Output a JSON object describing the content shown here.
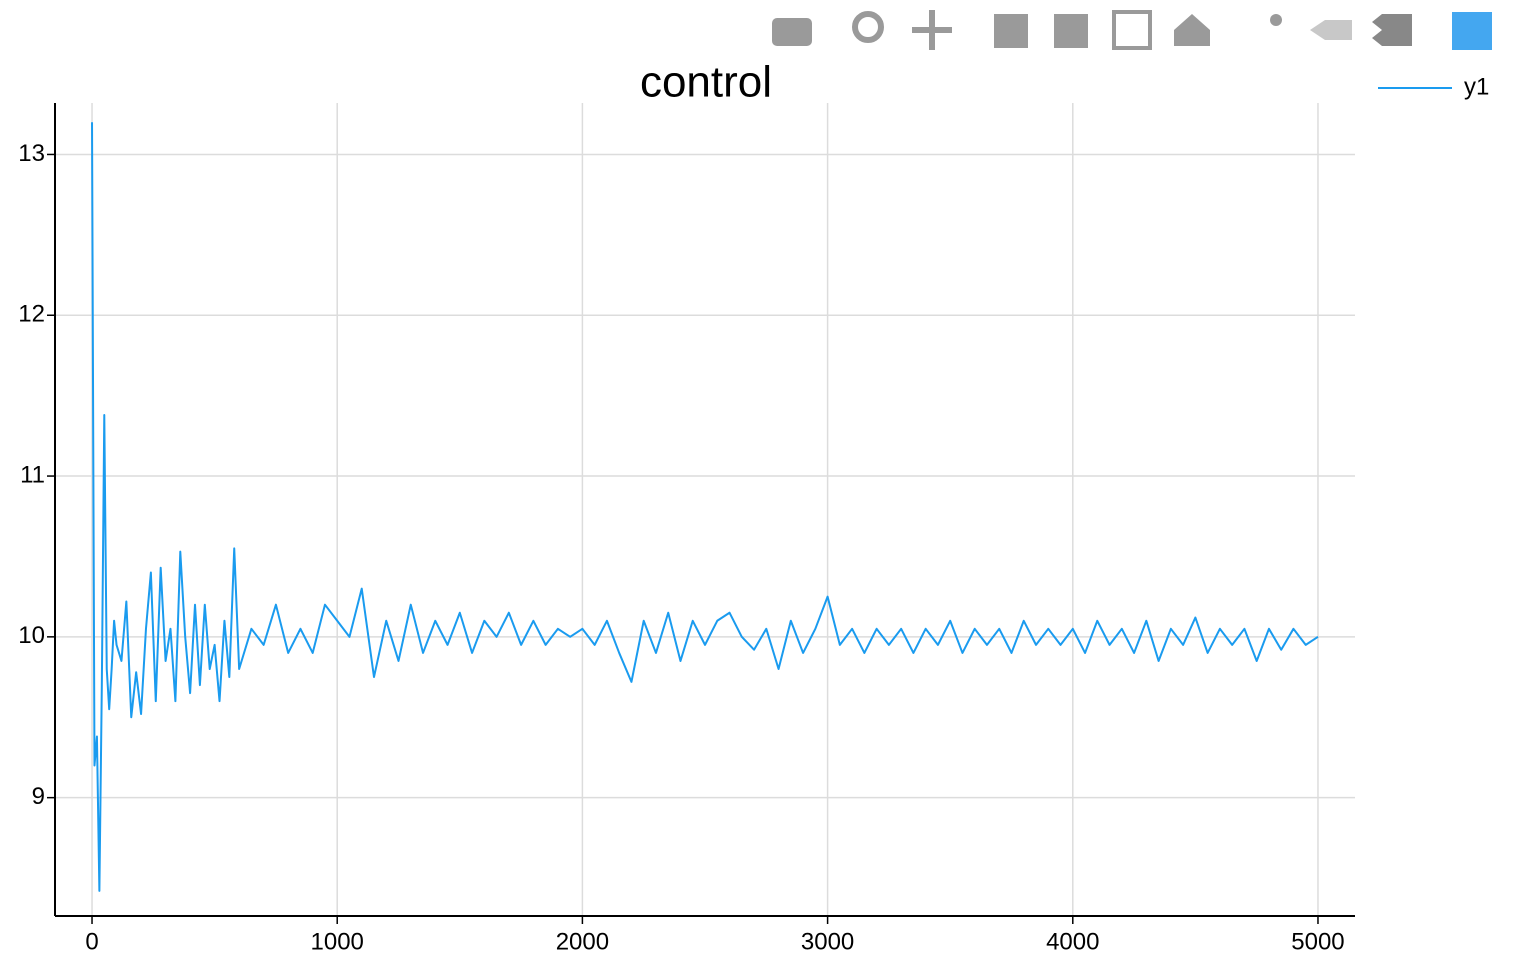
{
  "chart_data": {
    "type": "line",
    "title": "control",
    "x": [
      0,
      10,
      20,
      30,
      40,
      50,
      60,
      70,
      80,
      90,
      100,
      120,
      140,
      160,
      180,
      200,
      220,
      240,
      260,
      280,
      300,
      320,
      340,
      360,
      380,
      400,
      420,
      440,
      460,
      480,
      500,
      520,
      540,
      560,
      580,
      600,
      650,
      700,
      750,
      800,
      850,
      900,
      950,
      1000,
      1050,
      1100,
      1150,
      1200,
      1250,
      1300,
      1350,
      1400,
      1450,
      1500,
      1550,
      1600,
      1650,
      1700,
      1750,
      1800,
      1850,
      1900,
      1950,
      2000,
      2050,
      2100,
      2150,
      2200,
      2250,
      2300,
      2350,
      2400,
      2450,
      2500,
      2550,
      2600,
      2650,
      2700,
      2750,
      2800,
      2850,
      2900,
      2950,
      3000,
      3050,
      3100,
      3150,
      3200,
      3250,
      3300,
      3350,
      3400,
      3450,
      3500,
      3550,
      3600,
      3650,
      3700,
      3750,
      3800,
      3850,
      3900,
      3950,
      4000,
      4050,
      4100,
      4150,
      4200,
      4250,
      4300,
      4350,
      4400,
      4450,
      4500,
      4550,
      4600,
      4650,
      4700,
      4750,
      4800,
      4850,
      4900,
      4950,
      5000
    ],
    "series": [
      {
        "name": "y1",
        "color": "#1a9bef",
        "values": [
          13.2,
          9.2,
          9.38,
          8.42,
          9.7,
          11.38,
          9.8,
          9.55,
          9.8,
          10.1,
          9.95,
          9.85,
          10.22,
          9.5,
          9.78,
          9.52,
          10.05,
          10.4,
          9.6,
          10.43,
          9.85,
          10.05,
          9.6,
          10.53,
          10.0,
          9.65,
          10.2,
          9.7,
          10.2,
          9.8,
          9.95,
          9.6,
          10.1,
          9.75,
          10.55,
          9.8,
          10.05,
          9.95,
          10.2,
          9.9,
          10.05,
          9.9,
          10.2,
          10.1,
          10.0,
          10.3,
          9.75,
          10.1,
          9.85,
          10.2,
          9.9,
          10.1,
          9.95,
          10.15,
          9.9,
          10.1,
          10.0,
          10.15,
          9.95,
          10.1,
          9.95,
          10.05,
          10.0,
          10.05,
          9.95,
          10.1,
          9.9,
          9.72,
          10.1,
          9.9,
          10.15,
          9.85,
          10.1,
          9.95,
          10.1,
          10.15,
          10.0,
          9.92,
          10.05,
          9.8,
          10.1,
          9.9,
          10.05,
          10.25,
          9.95,
          10.05,
          9.9,
          10.05,
          9.95,
          10.05,
          9.9,
          10.05,
          9.95,
          10.1,
          9.9,
          10.05,
          9.95,
          10.05,
          9.9,
          10.1,
          9.95,
          10.05,
          9.95,
          10.05,
          9.9,
          10.1,
          9.95,
          10.05,
          9.9,
          10.1,
          9.85,
          10.05,
          9.95,
          10.12,
          9.9,
          10.05,
          9.95,
          10.05,
          9.85,
          10.05,
          9.92,
          10.05,
          9.95,
          10.0
        ]
      }
    ],
    "xlim": [
      -151,
      5151
    ],
    "ylim": [
      8.264,
      13.32
    ],
    "xticks": [
      0,
      1000,
      2000,
      3000,
      4000,
      5000
    ],
    "yticks": [
      9,
      10,
      11,
      12,
      13
    ],
    "grid": true,
    "legend": "top-right"
  }
}
